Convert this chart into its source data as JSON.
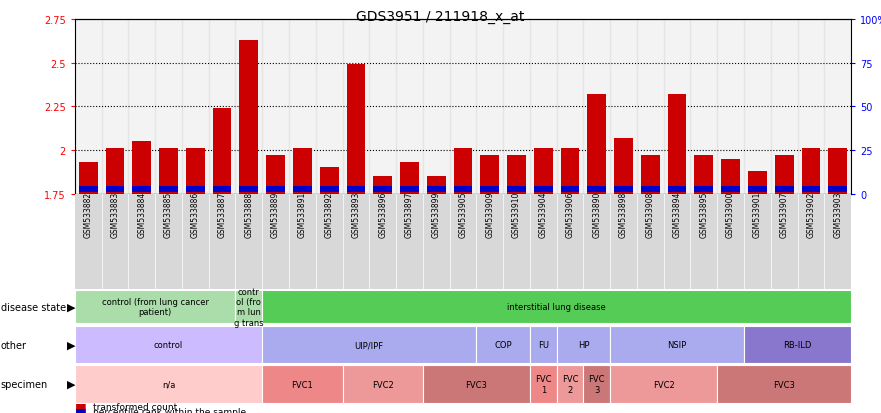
{
  "title": "GDS3951 / 211918_x_at",
  "samples": [
    "GSM533882",
    "GSM533883",
    "GSM533884",
    "GSM533885",
    "GSM533886",
    "GSM533887",
    "GSM533888",
    "GSM533889",
    "GSM533891",
    "GSM533892",
    "GSM533893",
    "GSM533896",
    "GSM533897",
    "GSM533899",
    "GSM533905",
    "GSM533909",
    "GSM533910",
    "GSM533904",
    "GSM533906",
    "GSM533890",
    "GSM533898",
    "GSM533908",
    "GSM533894",
    "GSM533895",
    "GSM533900",
    "GSM533901",
    "GSM533907",
    "GSM533902",
    "GSM533903"
  ],
  "red_values": [
    1.93,
    2.01,
    2.05,
    2.01,
    2.01,
    2.24,
    2.63,
    1.97,
    2.01,
    1.9,
    2.49,
    1.85,
    1.93,
    1.85,
    2.01,
    1.97,
    1.97,
    2.01,
    2.01,
    2.32,
    2.07,
    1.97,
    2.32,
    1.97,
    1.95,
    1.88,
    1.97,
    2.01,
    2.01
  ],
  "ylim_left": [
    1.75,
    2.75
  ],
  "yticks_left": [
    1.75,
    2.0,
    2.25,
    2.5,
    2.75
  ],
  "ytick_labels_left": [
    "1.75",
    "2",
    "2.25",
    "2.5",
    "2.75"
  ],
  "ytick_labels_right": [
    "0",
    "25",
    "50",
    "75",
    "100%"
  ],
  "bar_color": "#cc0000",
  "blue_color": "#0000cc",
  "annotation_rows": [
    {
      "label": "disease state",
      "segments": [
        {
          "text": "control (from lung cancer\npatient)",
          "start": 0,
          "end": 5,
          "color": "#aaddaa"
        },
        {
          "text": "contr\nol (fro\nm lun\ng trans",
          "start": 6,
          "end": 6,
          "color": "#aaddaa"
        },
        {
          "text": "interstitial lung disease",
          "start": 7,
          "end": 28,
          "color": "#55cc55"
        }
      ]
    },
    {
      "label": "other",
      "segments": [
        {
          "text": "control",
          "start": 0,
          "end": 6,
          "color": "#ccbbff"
        },
        {
          "text": "UIP/IPF",
          "start": 7,
          "end": 14,
          "color": "#aaaaee"
        },
        {
          "text": "COP",
          "start": 15,
          "end": 16,
          "color": "#aaaaee"
        },
        {
          "text": "FU",
          "start": 17,
          "end": 17,
          "color": "#aaaaee"
        },
        {
          "text": "HP",
          "start": 18,
          "end": 19,
          "color": "#aaaaee"
        },
        {
          "text": "NSIP",
          "start": 20,
          "end": 24,
          "color": "#aaaaee"
        },
        {
          "text": "RB-ILD",
          "start": 25,
          "end": 28,
          "color": "#8877cc"
        }
      ]
    },
    {
      "label": "specimen",
      "segments": [
        {
          "text": "n/a",
          "start": 0,
          "end": 6,
          "color": "#ffcccc"
        },
        {
          "text": "FVC1",
          "start": 7,
          "end": 9,
          "color": "#ee8888"
        },
        {
          "text": "FVC2",
          "start": 10,
          "end": 12,
          "color": "#ee9999"
        },
        {
          "text": "FVC3",
          "start": 13,
          "end": 16,
          "color": "#cc7777"
        },
        {
          "text": "FVC\n1",
          "start": 17,
          "end": 17,
          "color": "#ee8888"
        },
        {
          "text": "FVC\n2",
          "start": 18,
          "end": 18,
          "color": "#ee9999"
        },
        {
          "text": "FVC\n3",
          "start": 19,
          "end": 19,
          "color": "#cc7777"
        },
        {
          "text": "FVC2",
          "start": 20,
          "end": 23,
          "color": "#ee9999"
        },
        {
          "text": "FVC3",
          "start": 24,
          "end": 28,
          "color": "#cc7777"
        }
      ]
    }
  ]
}
